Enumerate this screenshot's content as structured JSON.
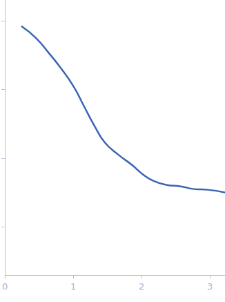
{
  "chart_data": {
    "type": "line",
    "color": "#3a65b5",
    "line_style": "solid",
    "marker": "none",
    "x": [
      0.24,
      0.45,
      0.65,
      0.81,
      1.0,
      1.16,
      1.31,
      1.46,
      1.66,
      1.86,
      2.01,
      2.17,
      2.37,
      2.57,
      2.77,
      2.97,
      3.22
    ],
    "values": [
      3.92,
      3.75,
      3.52,
      3.32,
      3.05,
      2.75,
      2.47,
      2.23,
      2.05,
      1.9,
      1.77,
      1.67,
      1.61,
      1.59,
      1.55,
      1.54,
      1.5
    ],
    "xlim": [
      0,
      3.22
    ],
    "xticks": [
      0,
      1,
      2,
      3
    ],
    "ylim": [
      0.3,
      4.3
    ],
    "yticks": [
      1,
      2,
      3,
      4
    ],
    "grid": false,
    "tick_labels": "x"
  }
}
